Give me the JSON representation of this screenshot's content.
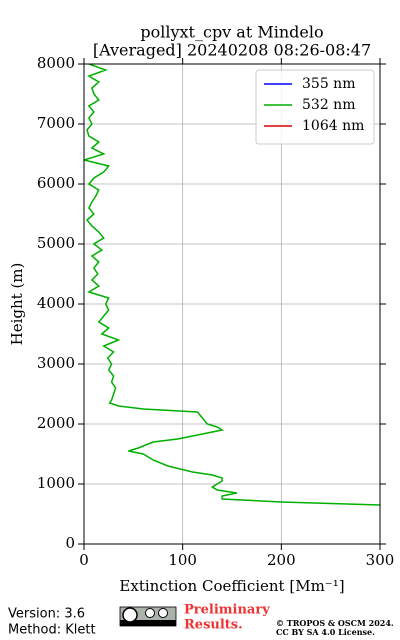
{
  "chart_data": {
    "type": "line",
    "title": "pollyxt_cpv at Mindelo",
    "subtitle": "[Averaged] 20240208 08:26-08:47",
    "xlabel": "Extinction Coefficient [Mm⁻¹]",
    "ylabel": "Height (m)",
    "y": [
      650,
      700,
      750,
      800,
      850,
      900,
      950,
      1000,
      1050,
      1100,
      1150,
      1200,
      1300,
      1400,
      1500,
      1550,
      1600,
      1700,
      1750,
      1800,
      1900,
      1950,
      2000,
      2100,
      2200,
      2250,
      2300,
      2350,
      2400,
      2500,
      2600,
      2700,
      2800,
      2900,
      3000,
      3100,
      3200,
      3300,
      3400,
      3500,
      3600,
      3700,
      3800,
      3900,
      4000,
      4100,
      4200,
      4300,
      4400,
      4500,
      4600,
      4700,
      4800,
      4900,
      5000,
      5100,
      5200,
      5300,
      5400,
      5500,
      5600,
      5700,
      5800,
      5900,
      6000,
      6100,
      6200,
      6300,
      6400,
      6500,
      6600,
      6700,
      6800,
      6900,
      7000,
      7100,
      7200,
      7300,
      7400,
      7500,
      7600,
      7700,
      7800,
      7900,
      8000
    ],
    "series": [
      {
        "name": "355 nm",
        "color": "#0000ff",
        "values": [
          null,
          null,
          null,
          null,
          null,
          null,
          null,
          null,
          null,
          null,
          null,
          null,
          null,
          null,
          null,
          null,
          null,
          null,
          null,
          null,
          null,
          null,
          null,
          null,
          null,
          null,
          null,
          null,
          null,
          null,
          null,
          null,
          null,
          null,
          null,
          null,
          null,
          null,
          null,
          null,
          null,
          null,
          null,
          null,
          null,
          null,
          null,
          null,
          null,
          null,
          null,
          null,
          null,
          null,
          null,
          null,
          null,
          null,
          null,
          null,
          null,
          null,
          null,
          null,
          null,
          null,
          null,
          null,
          null,
          null,
          null,
          null,
          null,
          null,
          null,
          null,
          null,
          null,
          null,
          null,
          null,
          null,
          null,
          null,
          null
        ]
      },
      {
        "name": "532 nm",
        "color": "#00b000",
        "values": [
          300,
          200,
          140,
          140,
          155,
          135,
          130,
          135,
          140,
          140,
          130,
          110,
          85,
          70,
          60,
          45,
          55,
          70,
          95,
          110,
          140,
          135,
          125,
          120,
          115,
          60,
          35,
          26,
          28,
          30,
          32,
          28,
          30,
          25,
          28,
          24,
          30,
          20,
          35,
          18,
          25,
          15,
          20,
          25,
          22,
          25,
          5,
          15,
          8,
          14,
          10,
          15,
          8,
          18,
          10,
          20,
          15,
          8,
          3,
          10,
          5,
          8,
          12,
          15,
          5,
          10,
          20,
          25,
          0,
          20,
          8,
          15,
          5,
          3,
          8,
          5,
          10,
          5,
          15,
          10,
          8,
          15,
          5,
          22,
          5
        ]
      },
      {
        "name": "1064 nm",
        "color": "#dd0000",
        "values": [
          null,
          null,
          null,
          null,
          null,
          null,
          null,
          null,
          null,
          null,
          null,
          null,
          null,
          null,
          null,
          null,
          null,
          null,
          null,
          null,
          null,
          null,
          null,
          null,
          null,
          null,
          null,
          null,
          null,
          null,
          null,
          null,
          null,
          null,
          null,
          null,
          null,
          null,
          null,
          null,
          null,
          null,
          null,
          null,
          null,
          null,
          null,
          null,
          null,
          null,
          null,
          null,
          null,
          null,
          null,
          null,
          null,
          null,
          null,
          null,
          null,
          null,
          null,
          null,
          null,
          null,
          null,
          null,
          null,
          null,
          null,
          null,
          null,
          null,
          null,
          null,
          null,
          null,
          null,
          null,
          null,
          null,
          null,
          null,
          null
        ]
      }
    ],
    "xlim": [
      0,
      300
    ],
    "xticks": [
      0,
      100,
      200,
      300
    ],
    "ylim": [
      0,
      8000
    ],
    "yticks": [
      0,
      1000,
      2000,
      3000,
      4000,
      5000,
      6000,
      7000,
      8000
    ],
    "grid": true,
    "legend": "upper right"
  },
  "footer": {
    "version": "Version: 3.6",
    "method": "Method: Klett",
    "preliminary": "Preliminary",
    "results": "Results.",
    "copyright": "© TROPOS & OSCM 2024.",
    "license": "CC BY SA 4.0 License."
  }
}
